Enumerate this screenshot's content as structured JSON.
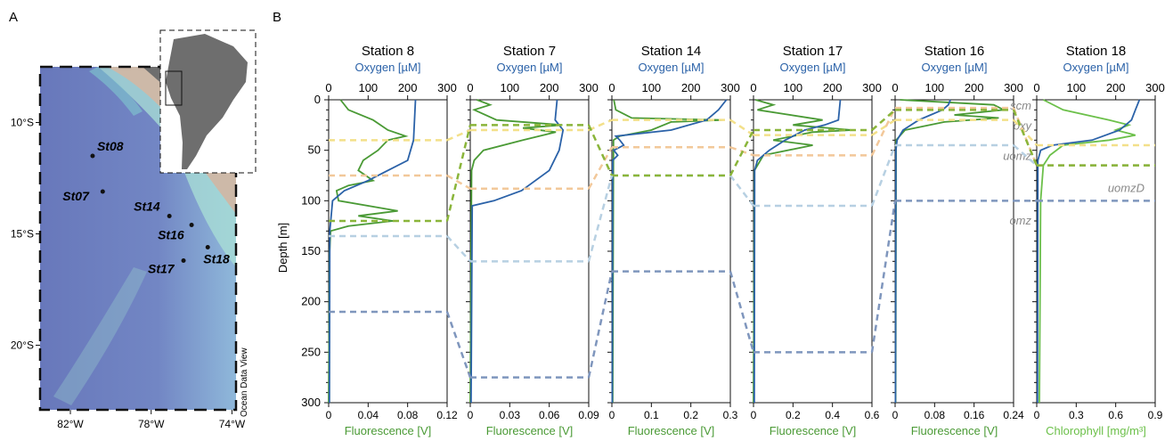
{
  "panel_labels": {
    "a": "A",
    "b": "B"
  },
  "map": {
    "lat_ticks": [
      "10°S",
      "15°S",
      "20°S"
    ],
    "lon_ticks": [
      "82°W",
      "78°W",
      "74°W"
    ],
    "watermark": "Ocean Data View",
    "stations": [
      {
        "label": "St08",
        "lat": -11.5,
        "lon": -80.9
      },
      {
        "label": "St07",
        "lat": -13.1,
        "lon": -80.4
      },
      {
        "label": "St14",
        "lat": -14.2,
        "lon": -77.1
      },
      {
        "label": "St16",
        "lat": -14.6,
        "lon": -76.0
      },
      {
        "label": "St18",
        "lat": -15.6,
        "lon": -75.2
      },
      {
        "label": "St17",
        "lat": -16.2,
        "lon": -76.4
      }
    ],
    "colors": {
      "ocean_deep": "#6f7fbf",
      "ocean_shelf": "#9fdcd8",
      "land": "#cdb9a8",
      "continent": "#6e6e6e"
    }
  },
  "chart_data": [
    {
      "type": "line",
      "title": "Station 8",
      "top_label": "Oxygen [µM]",
      "bottom_label": "Fluorescence [V]",
      "ylabel": "Depth [m]",
      "ylim": [
        300,
        0
      ],
      "ylim_ticks": [
        0,
        50,
        100,
        150,
        200,
        250,
        300
      ],
      "top_range": [
        0,
        300
      ],
      "top_ticks": [
        0,
        100,
        200,
        300
      ],
      "bottom_range": [
        0,
        0.12
      ],
      "bottom_ticks": [
        "0",
        "0.04",
        "0.08",
        "0.12"
      ],
      "oxygen": {
        "depth": [
          0,
          40,
          60,
          70,
          80,
          90,
          100,
          130,
          300
        ],
        "value": [
          220,
          215,
          200,
          150,
          100,
          40,
          10,
          3,
          2
        ]
      },
      "fluorescence": {
        "depth": [
          0,
          10,
          20,
          30,
          36,
          40,
          50,
          60,
          70,
          80,
          85,
          90,
          100,
          110,
          115,
          120,
          125,
          130,
          150,
          300
        ],
        "value": [
          0.012,
          0.02,
          0.045,
          0.06,
          0.078,
          0.06,
          0.05,
          0.035,
          0.03,
          0.045,
          0.02,
          0.008,
          0.01,
          0.07,
          0.03,
          0.065,
          0.02,
          0.002,
          0.001,
          0.0
        ]
      },
      "layers": {
        "scm": 120,
        "oxy": 40,
        "uomz": 135,
        "uomzD": 75,
        "omz": 210
      }
    },
    {
      "type": "line",
      "title": "Station 7",
      "top_label": "Oxygen [µM]",
      "bottom_label": "Fluorescence [V]",
      "ylim": [
        300,
        0
      ],
      "top_range": [
        0,
        300
      ],
      "top_ticks": [
        0,
        100,
        200,
        300
      ],
      "bottom_range": [
        0,
        0.09
      ],
      "bottom_ticks": [
        "0",
        "0.03",
        "0.06",
        "0.09"
      ],
      "oxygen": {
        "depth": [
          0,
          20,
          30,
          50,
          70,
          90,
          100,
          105,
          300
        ],
        "value": [
          220,
          215,
          235,
          225,
          200,
          130,
          60,
          5,
          2
        ]
      },
      "fluorescence": {
        "depth": [
          0,
          5,
          10,
          20,
          25,
          28,
          32,
          40,
          50,
          60,
          70,
          300
        ],
        "value": [
          0.005,
          0.015,
          0.003,
          0.02,
          0.07,
          0.04,
          0.065,
          0.04,
          0.01,
          0.003,
          0.001,
          0.0
        ]
      },
      "layers": {
        "scm": 25,
        "oxy": 30,
        "uomz": 160,
        "uomzD": 88,
        "omz": 275
      }
    },
    {
      "type": "line",
      "title": "Station 14",
      "top_label": "Oxygen [µM]",
      "bottom_label": "Fluorescence [V]",
      "ylim": [
        300,
        0
      ],
      "top_range": [
        0,
        300
      ],
      "top_ticks": [
        0,
        100,
        200,
        300
      ],
      "bottom_range": [
        0,
        0.3
      ],
      "bottom_ticks": [
        "0",
        "0.1",
        "0.2",
        "0.3"
      ],
      "oxygen": {
        "depth": [
          0,
          10,
          20,
          30,
          36,
          40,
          45,
          50,
          55,
          60,
          300
        ],
        "value": [
          290,
          270,
          240,
          150,
          10,
          20,
          30,
          5,
          15,
          2,
          1
        ]
      },
      "fluorescence": {
        "depth": [
          0,
          10,
          18,
          20,
          22,
          30,
          36,
          40,
          300
        ],
        "value": [
          0.005,
          0.01,
          0.05,
          0.28,
          0.15,
          0.1,
          0.02,
          0.004,
          0.002
        ]
      },
      "layers": {
        "scm": 75,
        "oxy": 20,
        "uomz": 75,
        "uomzD": 47,
        "omz": 170
      }
    },
    {
      "type": "line",
      "title": "Station 17",
      "top_label": "Oxygen [µM]",
      "bottom_label": "Fluorescence [V]",
      "ylim": [
        300,
        0
      ],
      "top_range": [
        0,
        300
      ],
      "top_ticks": [
        0,
        100,
        200,
        300
      ],
      "bottom_range": [
        0,
        0.6
      ],
      "bottom_ticks": [
        "0",
        "0.2",
        "0.4",
        "0.6"
      ],
      "oxygen": {
        "depth": [
          0,
          20,
          25,
          30,
          40,
          50,
          60,
          70,
          300
        ],
        "value": [
          220,
          215,
          180,
          130,
          80,
          40,
          10,
          3,
          2
        ]
      },
      "fluorescence": {
        "depth": [
          0,
          5,
          10,
          20,
          25,
          30,
          32,
          40,
          45,
          55,
          70,
          300
        ],
        "value": [
          0.01,
          0.1,
          0.02,
          0.35,
          0.2,
          0.5,
          0.3,
          0.1,
          0.3,
          0.05,
          0.005,
          0.0
        ]
      },
      "layers": {
        "scm": 30,
        "oxy": 35,
        "uomz": 105,
        "uomzD": 55,
        "omz": 250
      }
    },
    {
      "type": "line",
      "title": "Station 16",
      "top_label": "Oxygen [µM]",
      "bottom_label": "Fluorescence [V]",
      "ylim": [
        300,
        0
      ],
      "top_range": [
        0,
        300
      ],
      "top_ticks": [
        0,
        100,
        200,
        300
      ],
      "bottom_range": [
        0,
        0.24
      ],
      "bottom_ticks": [
        "0",
        "0.08",
        "0.16",
        "0.24"
      ],
      "oxygen": {
        "depth": [
          0,
          5,
          10,
          15,
          20,
          30,
          40,
          50,
          300
        ],
        "value": [
          140,
          135,
          120,
          90,
          60,
          20,
          5,
          2,
          1
        ]
      },
      "fluorescence": {
        "depth": [
          0,
          5,
          10,
          15,
          18,
          22,
          30,
          40,
          300
        ],
        "value": [
          0.01,
          0.2,
          0.22,
          0.12,
          0.21,
          0.1,
          0.02,
          0.002,
          0.001
        ]
      },
      "layers": {
        "scm": 10,
        "oxy": 20,
        "uomz": 45,
        "uomzD": 8,
        "omz": 100
      }
    },
    {
      "type": "line",
      "title": "Station 18",
      "top_label": "Oxygen [µM]",
      "bottom_label": "Chlorophyll [mg/m³]",
      "ylim": [
        300,
        0
      ],
      "top_range": [
        0,
        300
      ],
      "top_ticks": [
        0,
        100,
        200,
        300
      ],
      "bottom_range": [
        0,
        0.9
      ],
      "bottom_ticks": [
        "0",
        "0.3",
        "0.6",
        "0.9"
      ],
      "oxygen": {
        "depth": [
          0,
          10,
          20,
          30,
          40,
          45,
          50,
          60,
          300
        ],
        "value": [
          260,
          250,
          240,
          210,
          140,
          40,
          10,
          3,
          2
        ]
      },
      "fluorescence": {
        "depth": [
          0,
          10,
          20,
          25,
          30,
          35,
          40,
          45,
          55,
          65,
          100,
          300
        ],
        "value": [
          0.05,
          0.2,
          0.55,
          0.7,
          0.6,
          0.75,
          0.55,
          0.2,
          0.1,
          0.05,
          0.03,
          0.02
        ]
      },
      "layers": {
        "scm": 65,
        "oxy": 45,
        "uomz": 65,
        "uomzD": 65,
        "omz": 100
      },
      "layer_labels": [
        "scm",
        "oxy",
        "uomz",
        "uomzD",
        "omz"
      ]
    }
  ],
  "layer_colors": {
    "scm": "#8ab53a",
    "oxy": "#f3e08a",
    "uomzD": "#f2c89a",
    "uomz": "#b7d0e2",
    "omz": "#7f96bd"
  },
  "series_colors": {
    "oxygen": "#2b62a8",
    "fluorescence": "#4a9a35",
    "chlorophyll": "#6cc04a"
  }
}
